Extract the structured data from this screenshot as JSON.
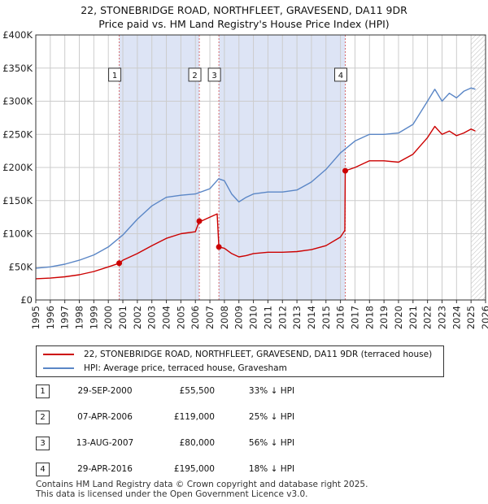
{
  "title_line1": "22, STONEBRIDGE ROAD, NORTHFLEET, GRAVESEND, DA11 9DR",
  "title_line2": "Price paid vs. HM Land Registry's House Price Index (HPI)",
  "colors": {
    "property": "#cc0000",
    "hpi": "#5a86c6",
    "band": "#dde4f5",
    "grid": "#cccccc",
    "marker_line": "#cc3333"
  },
  "legend": {
    "property_label": "22, STONEBRIDGE ROAD, NORTHFLEET, GRAVESEND, DA11 9DR (terraced house)",
    "hpi_label": "HPI: Average price, terraced house, Gravesham"
  },
  "transactions": [
    {
      "num": "1",
      "date": "29-SEP-2000",
      "price": "£55,500",
      "hpi": "33% ↓ HPI"
    },
    {
      "num": "2",
      "date": "07-APR-2006",
      "price": "£119,000",
      "hpi": "25% ↓ HPI"
    },
    {
      "num": "3",
      "date": "13-AUG-2007",
      "price": "£80,000",
      "hpi": "56% ↓ HPI"
    },
    {
      "num": "4",
      "date": "29-APR-2016",
      "price": "£195,000",
      "hpi": "18% ↓ HPI"
    }
  ],
  "footer_line1": "Contains HM Land Registry data © Crown copyright and database right 2025.",
  "footer_line2": "This data is licensed under the Open Government Licence v3.0.",
  "chart_data": {
    "type": "line",
    "title": "22, STONEBRIDGE ROAD, NORTHFLEET, GRAVESEND, DA11 9DR — Price paid vs. HM Land Registry's House Price Index (HPI)",
    "xlabel": "",
    "ylabel": "",
    "xlim": [
      1995,
      2026
    ],
    "ylim": [
      0,
      400000
    ],
    "x_ticks": [
      "1995",
      "1996",
      "1997",
      "1998",
      "1999",
      "2000",
      "2001",
      "2002",
      "2003",
      "2004",
      "2005",
      "2006",
      "2007",
      "2008",
      "2009",
      "2010",
      "2011",
      "2012",
      "2013",
      "2014",
      "2015",
      "2016",
      "2017",
      "2018",
      "2019",
      "2020",
      "2021",
      "2022",
      "2023",
      "2024",
      "2025",
      "2026"
    ],
    "y_ticks": [
      {
        "value": 0,
        "label": "£0"
      },
      {
        "value": 50000,
        "label": "£50K"
      },
      {
        "value": 100000,
        "label": "£100K"
      },
      {
        "value": 150000,
        "label": "£150K"
      },
      {
        "value": 200000,
        "label": "£200K"
      },
      {
        "value": 250000,
        "label": "£250K"
      },
      {
        "value": 300000,
        "label": "£300K"
      },
      {
        "value": 350000,
        "label": "£350K"
      },
      {
        "value": 400000,
        "label": "£400K"
      }
    ],
    "grid": true,
    "legend_position": "below",
    "shaded_periods": [
      [
        2000.75,
        2006.27
      ],
      [
        2007.62,
        2016.33
      ]
    ],
    "hatched_from": 2025.0,
    "sale_markers": [
      {
        "label": "1",
        "x": 2000.75,
        "y": 55500
      },
      {
        "label": "2",
        "x": 2006.27,
        "y": 119000
      },
      {
        "label": "3",
        "x": 2007.62,
        "y": 80000
      },
      {
        "label": "4",
        "x": 2016.33,
        "y": 195000
      }
    ],
    "series": [
      {
        "name": "22, STONEBRIDGE ROAD, NORTHFLEET, GRAVESEND, DA11 9DR (terraced house)",
        "color": "#cc0000",
        "x": [
          1995,
          1996,
          1997,
          1998,
          1999,
          2000,
          2000.75,
          2001,
          2002,
          2003,
          2004,
          2005,
          2006,
          2006.27,
          2006.5,
          2007,
          2007.5,
          2007.62,
          2008,
          2008.5,
          2009,
          2009.5,
          2010,
          2011,
          2012,
          2013,
          2014,
          2015,
          2016,
          2016.3,
          2016.33,
          2017,
          2018,
          2019,
          2020,
          2021,
          2022,
          2022.5,
          2023,
          2023.5,
          2024,
          2024.5,
          2025,
          2025.3
        ],
        "y": [
          32000,
          33000,
          35000,
          38000,
          43000,
          50000,
          55500,
          60000,
          70000,
          82000,
          93000,
          100000,
          103000,
          119000,
          120000,
          125000,
          130000,
          80000,
          78000,
          70000,
          65000,
          67000,
          70000,
          72000,
          72000,
          73000,
          76000,
          82000,
          95000,
          105000,
          195000,
          200000,
          210000,
          210000,
          208000,
          220000,
          245000,
          262000,
          250000,
          255000,
          248000,
          252000,
          258000,
          255000
        ]
      },
      {
        "name": "HPI: Average price, terraced house, Gravesham",
        "color": "#5a86c6",
        "x": [
          1995,
          1996,
          1997,
          1998,
          1999,
          2000,
          2001,
          2002,
          2003,
          2004,
          2005,
          2006,
          2007,
          2007.6,
          2008,
          2008.5,
          2009,
          2009.5,
          2010,
          2011,
          2012,
          2013,
          2014,
          2015,
          2016,
          2017,
          2018,
          2019,
          2020,
          2021,
          2022,
          2022.5,
          2023,
          2023.5,
          2024,
          2024.5,
          2025,
          2025.3
        ],
        "y": [
          48000,
          50000,
          54000,
          60000,
          68000,
          80000,
          98000,
          122000,
          142000,
          155000,
          158000,
          160000,
          168000,
          183000,
          180000,
          160000,
          148000,
          155000,
          160000,
          163000,
          163000,
          166000,
          178000,
          197000,
          222000,
          240000,
          250000,
          250000,
          252000,
          265000,
          300000,
          318000,
          300000,
          312000,
          305000,
          315000,
          320000,
          318000
        ]
      }
    ]
  }
}
